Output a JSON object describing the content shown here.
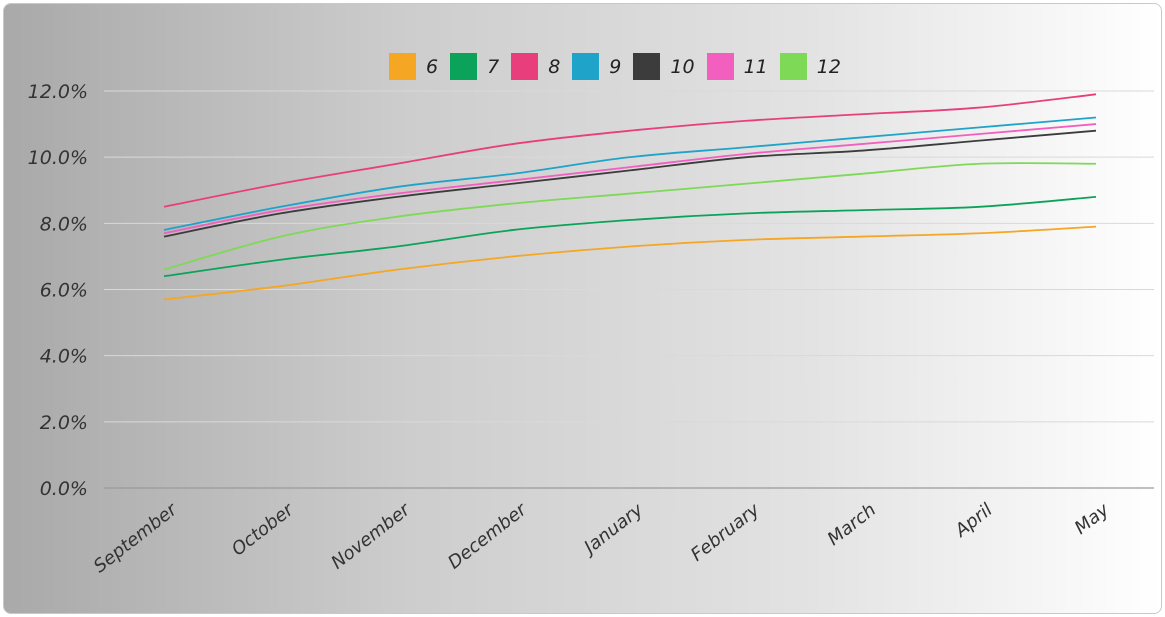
{
  "chart_data": {
    "type": "line",
    "title": "",
    "xlabel": "",
    "ylabel": "",
    "categories": [
      "September",
      "October",
      "November",
      "December",
      "January",
      "February",
      "March",
      "April",
      "May"
    ],
    "ylim": [
      0,
      12
    ],
    "y_ticks": [
      "0.0%",
      "2.0%",
      "4.0%",
      "6.0%",
      "8.0%",
      "10.0%",
      "12.0%"
    ],
    "grid": true,
    "legend_position": "top-center",
    "series": [
      {
        "name": "6",
        "color": "#F5A623",
        "values": [
          5.7,
          6.1,
          6.6,
          7.0,
          7.3,
          7.5,
          7.6,
          7.7,
          7.9
        ]
      },
      {
        "name": "7",
        "color": "#0BA35A",
        "values": [
          6.4,
          6.9,
          7.3,
          7.8,
          8.1,
          8.3,
          8.4,
          8.5,
          8.8
        ]
      },
      {
        "name": "8",
        "color": "#E83E7C",
        "values": [
          8.5,
          9.2,
          9.8,
          10.4,
          10.8,
          11.1,
          11.3,
          11.5,
          11.9
        ]
      },
      {
        "name": "9",
        "color": "#1FA3C9",
        "values": [
          7.8,
          8.5,
          9.1,
          9.5,
          10.0,
          10.3,
          10.6,
          10.9,
          11.2
        ]
      },
      {
        "name": "10",
        "color": "#3C3C3C",
        "values": [
          7.6,
          8.3,
          8.8,
          9.2,
          9.6,
          10.0,
          10.2,
          10.5,
          10.8
        ]
      },
      {
        "name": "11",
        "color": "#F25FBE",
        "values": [
          7.7,
          8.4,
          8.9,
          9.3,
          9.7,
          10.1,
          10.4,
          10.7,
          11.0
        ]
      },
      {
        "name": "12",
        "color": "#7ED957",
        "values": [
          6.6,
          7.6,
          8.2,
          8.6,
          8.9,
          9.2,
          9.5,
          9.8,
          9.8
        ]
      }
    ]
  }
}
